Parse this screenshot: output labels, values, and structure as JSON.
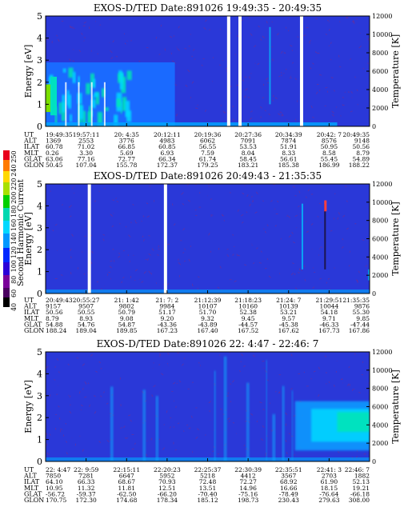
{
  "colorbar": {
    "label": "Second Harmonic Current",
    "ticks": [
      "40",
      "60",
      "80",
      "100",
      "120",
      "140",
      "160",
      "180",
      "200",
      "220",
      "240",
      "250"
    ]
  },
  "chart_data": [
    {
      "type": "heatmap",
      "title": "EXOS-D/TED   Date:891026  19:49:35 - 20:49:35",
      "ylabel": "Energy [eV]",
      "y2label": "Temperature [K]",
      "ylim": [
        0,
        5
      ],
      "y2lim": [
        0,
        12000
      ],
      "yticks": [
        "0",
        "1",
        "2",
        "3",
        "4",
        "5"
      ],
      "y2ticks": [
        "0",
        "2000",
        "4000",
        "6000",
        "8000",
        "10000",
        "12000"
      ],
      "row_labels": [
        "UT",
        "ALT",
        "ILAT",
        "MLT",
        "GLAT",
        "GLON"
      ],
      "columns": [
        [
          "19:49:35",
          "1369",
          "60.78",
          "0.26",
          "63.06",
          "50.45"
        ],
        [
          "19:57:11",
          "2553",
          "71.02",
          "3.30",
          "77.16",
          "107.04"
        ],
        [
          "20: 4:35",
          "3776",
          "66.85",
          "5.69",
          "72.77",
          "155.78"
        ],
        [
          "20:12:11",
          "4983",
          "60.85",
          "6.93",
          "66.34",
          "172.37"
        ],
        [
          "20:19:36",
          "6062",
          "56.55",
          "7.59",
          "61.74",
          "179.25"
        ],
        [
          "20:27:36",
          "7091",
          "53.53",
          "8.04",
          "58.45",
          "183.21"
        ],
        [
          "20:34:39",
          "7874",
          "51.91",
          "8.33",
          "56.61",
          "185.38"
        ],
        [
          "20:42: 7",
          "8576",
          "50.95",
          "8.58",
          "55.45",
          "186.99"
        ],
        [
          "20:49:35",
          "9148",
          "50.56",
          "8.79",
          "54.89",
          "188.22"
        ]
      ],
      "gaps": [
        0.565,
        0.6,
        0.79
      ]
    },
    {
      "type": "heatmap",
      "title": "EXOS-D/TED   Date:891026  20:49:43 - 21:35:35",
      "ylabel": "Energy [eV]",
      "y2label": "Temperature [K]",
      "ylim": [
        0,
        5
      ],
      "y2lim": [
        0,
        12000
      ],
      "yticks": [
        "0",
        "1",
        "2",
        "3",
        "4",
        "5"
      ],
      "y2ticks": [
        "0",
        "2000",
        "4000",
        "6000",
        "8000",
        "10000",
        "12000"
      ],
      "row_labels": [
        "UT",
        "ALT",
        "ILAT",
        "MLT",
        "GLAT",
        "GLON"
      ],
      "columns": [
        [
          "20:49:43",
          "9157",
          "50.56",
          "8.79",
          "54.88",
          "188.24"
        ],
        [
          "20:55:27",
          "9507",
          "50.55",
          "8.93",
          "54.76",
          "189.04"
        ],
        [
          "21: 1:42",
          "9802",
          "50.79",
          "9.08",
          "54.87",
          "189.85"
        ],
        [
          "21: 7: 2",
          "9984",
          "51.17",
          "9.20",
          "-43.36",
          "167.23"
        ],
        [
          "21:12:39",
          "10107",
          "51.70",
          "9.32",
          "-43.89",
          "167.40"
        ],
        [
          "21:18:23",
          "10160",
          "52.38",
          "9.45",
          "-44.57",
          "167.52"
        ],
        [
          "21:24: 7",
          "10139",
          "53.21",
          "9.57",
          "-45.38",
          "167.62"
        ],
        [
          "21:29:51",
          "10044",
          "54.18",
          "9.71",
          "-46.33",
          "167.73"
        ],
        [
          "21:35:35",
          "9876",
          "55.30",
          "9.85",
          "-47.44",
          "167.86"
        ]
      ],
      "gaps": [
        0.135,
        0.37
      ]
    },
    {
      "type": "heatmap",
      "title": "EXOS-D/TED   Date:891026  22: 4:47 - 22:46: 7",
      "ylabel": "Energy [eV]",
      "y2label": "Temperature [K]",
      "ylim": [
        0,
        5
      ],
      "y2lim": [
        0,
        12000
      ],
      "yticks": [
        "0",
        "1",
        "2",
        "3",
        "4",
        "5"
      ],
      "y2ticks": [
        "0",
        "2000",
        "4000",
        "6000",
        "8000",
        "10000",
        "12000"
      ],
      "row_labels": [
        "UT",
        "ALT",
        "ILAT",
        "MLT",
        "GLAT",
        "GLON"
      ],
      "columns": [
        [
          "22: 4:47",
          "7850",
          "64.10",
          "10.95",
          "-56.72",
          "170.75"
        ],
        [
          "22: 9:59",
          "7281",
          "66.33",
          "11.32",
          "-59.37",
          "172.30"
        ],
        [
          "22:15:11",
          "6647",
          "68.67",
          "11.81",
          "-62.50",
          "174.68"
        ],
        [
          "22:20:23",
          "5952",
          "70.93",
          "12.51",
          "-66.20",
          "178.34"
        ],
        [
          "22:25:37",
          "5218",
          "72.48",
          "13.51",
          "-70.40",
          "185.12"
        ],
        [
          "22:30:39",
          "4412",
          "72.27",
          "14.96",
          "-75.16",
          "198.73"
        ],
        [
          "22:35:51",
          "3567",
          "68.92",
          "16.66",
          "-78.49",
          "230.43"
        ],
        [
          "22:41: 3",
          "2703",
          "61.90",
          "18.15",
          "-76.64",
          "279.63"
        ],
        [
          "22:46: 7",
          "1882",
          "52.13",
          "19.21",
          "-66.18",
          "308.00"
        ]
      ],
      "gaps": []
    }
  ]
}
